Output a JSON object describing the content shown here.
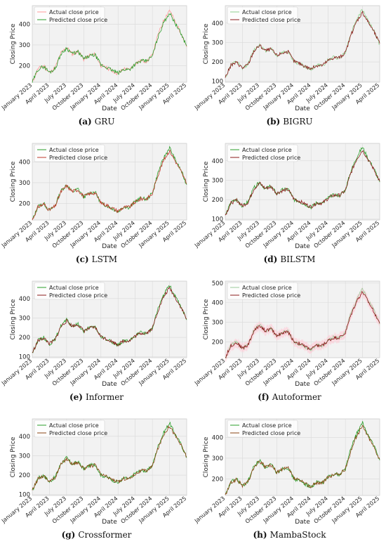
{
  "figure": {
    "panels": [
      {
        "letter": "(a)",
        "name": "GRU",
        "ytick_labels": [
          "200",
          "300",
          "400"
        ],
        "yrange": [
          120,
          490
        ],
        "legend": [
          "Actual close price",
          "Predicted close price"
        ],
        "actual_color": "#ff9999",
        "pred_color": "#2ca02c",
        "band": false
      },
      {
        "letter": "(b)",
        "name": "BIGRU",
        "ytick_labels": [
          "100",
          "200",
          "300",
          "400"
        ],
        "yrange": [
          95,
          490
        ],
        "legend": [
          "Actual close price",
          "Predicted close price"
        ],
        "actual_color": "#8fd18f",
        "pred_color": "#8b1a1a",
        "band": false
      },
      {
        "letter": "(c)",
        "name": "LSTM",
        "ytick_labels": [
          "200",
          "300",
          "400"
        ],
        "yrange": [
          120,
          490
        ],
        "legend": [
          "Actual close price",
          "Predicted close price"
        ],
        "actual_color": "#2ca02c",
        "pred_color": "#c0392b",
        "band": false
      },
      {
        "letter": "(d)",
        "name": "BILSTM",
        "ytick_labels": [
          "100",
          "200",
          "300",
          "400"
        ],
        "yrange": [
          95,
          490
        ],
        "legend": [
          "Actual close price",
          "Predicted close price"
        ],
        "actual_color": "#2ca02c",
        "pred_color": "#8b1a1a",
        "band": false
      },
      {
        "letter": "(e)",
        "name": "Informer",
        "ytick_labels": [
          "100",
          "200",
          "300",
          "400"
        ],
        "yrange": [
          95,
          490
        ],
        "legend": [
          "Actual close price",
          "Predicted close price"
        ],
        "actual_color": "#2ca02c",
        "pred_color": "#8b1a1a",
        "band": false
      },
      {
        "letter": "(f)",
        "name": "Autoformer",
        "ytick_labels": [
          "200",
          "300",
          "400",
          "500"
        ],
        "yrange": [
          120,
          510
        ],
        "legend": [
          "Actual close price",
          "Predicted close price"
        ],
        "actual_color": "#9ccc9c",
        "pred_color": "#8b1a1a",
        "band": true
      },
      {
        "letter": "(g)",
        "name": "Crossformer",
        "ytick_labels": [
          "100",
          "200",
          "300",
          "400"
        ],
        "yrange": [
          95,
          490
        ],
        "legend": [
          "Actual close price",
          "Predicted close price"
        ],
        "actual_color": "#2ca02c",
        "pred_color": "#8b4513",
        "band": false
      },
      {
        "letter": "(h)",
        "name": "MambaStock",
        "ytick_labels": [
          "200",
          "300",
          "400"
        ],
        "yrange": [
          120,
          490
        ],
        "legend": [
          "Actual close price",
          "Predicted close price"
        ],
        "actual_color": "#2ca02c",
        "pred_color": "#8b4513",
        "band": false
      }
    ]
  },
  "chart_data": {
    "type": "line",
    "xlabel": "Date",
    "ylabel": "Closing Price",
    "xtick_labels": [
      "January 2023",
      "April 2023",
      "July 2023",
      "October 2023",
      "January 2024",
      "April 2024",
      "July 2024",
      "October 2024",
      "January 2025",
      "April 2025"
    ],
    "x": [
      "2023-01",
      "2023-02",
      "2023-03",
      "2023-04",
      "2023-05",
      "2023-06",
      "2023-07",
      "2023-08",
      "2023-09",
      "2023-10",
      "2023-11",
      "2023-12",
      "2024-01",
      "2024-02",
      "2024-03",
      "2024-04",
      "2024-05",
      "2024-06",
      "2024-07",
      "2024-08",
      "2024-09",
      "2024-10",
      "2024-11",
      "2024-12",
      "2025-01",
      "2025-02",
      "2025-03",
      "2025-04"
    ],
    "series": [
      {
        "name": "Actual close price",
        "values": [
          118,
          185,
          200,
          165,
          190,
          260,
          290,
          255,
          270,
          230,
          250,
          255,
          200,
          190,
          175,
          160,
          185,
          180,
          210,
          225,
          220,
          250,
          350,
          420,
          470,
          410,
          360,
          290
        ]
      },
      {
        "name": "Predicted close price",
        "values": [
          120,
          182,
          197,
          168,
          186,
          255,
          285,
          258,
          266,
          233,
          246,
          252,
          203,
          192,
          177,
          163,
          182,
          182,
          207,
          222,
          223,
          246,
          340,
          410,
          455,
          405,
          355,
          295
        ]
      }
    ]
  }
}
